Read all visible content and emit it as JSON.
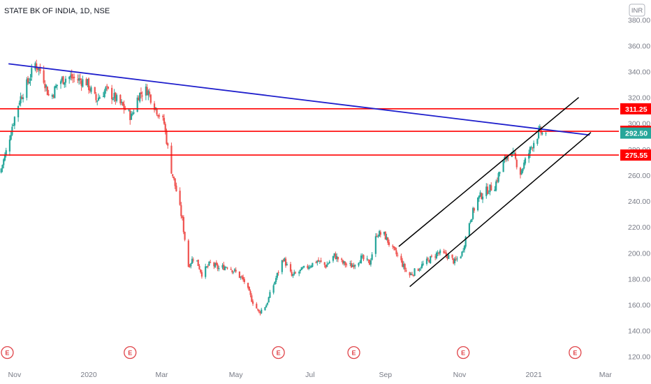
{
  "chart_data": {
    "type": "candlestick",
    "title": "STATE BK OF INDIA, 1D, NSE",
    "currency": "INR",
    "ylim": [
      115,
      392
    ],
    "y_ticks": [
      120,
      140,
      160,
      180,
      200,
      220,
      240,
      260,
      280,
      300,
      320,
      340,
      360,
      380
    ],
    "y_tick_labels": [
      "120.00",
      "140.00",
      "160.00",
      "180.00",
      "200.00",
      "220.00",
      "240.00",
      "260.00",
      "280.00",
      "300.00",
      "320.00",
      "340.00",
      "360.00",
      "380.00"
    ],
    "x_range": [
      "2019-10-20",
      "2021-03-12"
    ],
    "x_ticks": [
      {
        "label": "Nov",
        "date": "2019-11-01"
      },
      {
        "label": "2020",
        "date": "2020-01-01"
      },
      {
        "label": "Mar",
        "date": "2020-03-01"
      },
      {
        "label": "May",
        "date": "2020-05-01"
      },
      {
        "label": "Jul",
        "date": "2020-07-01"
      },
      {
        "label": "Sep",
        "date": "2020-09-01"
      },
      {
        "label": "Nov",
        "date": "2020-11-01"
      },
      {
        "label": "2021",
        "date": "2021-01-01"
      },
      {
        "label": "Mar",
        "date": "2021-03-01"
      }
    ],
    "price_path": [
      [
        "2019-10-20",
        262
      ],
      [
        "2019-10-25",
        278
      ],
      [
        "2019-10-30",
        298
      ],
      [
        "2019-11-05",
        318
      ],
      [
        "2019-11-12",
        332
      ],
      [
        "2019-11-18",
        346
      ],
      [
        "2019-11-24",
        338
      ],
      [
        "2019-11-30",
        318
      ],
      [
        "2019-12-07",
        332
      ],
      [
        "2019-12-15",
        336
      ],
      [
        "2019-12-22",
        334
      ],
      [
        "2019-12-30",
        332
      ],
      [
        "2020-01-07",
        318
      ],
      [
        "2020-01-15",
        326
      ],
      [
        "2020-01-22",
        320
      ],
      [
        "2020-01-30",
        312
      ],
      [
        "2020-02-05",
        305
      ],
      [
        "2020-02-11",
        322
      ],
      [
        "2020-02-18",
        326
      ],
      [
        "2020-02-25",
        312
      ],
      [
        "2020-03-03",
        300
      ],
      [
        "2020-03-08",
        268
      ],
      [
        "2020-03-13",
        248
      ],
      [
        "2020-03-18",
        225
      ],
      [
        "2020-03-23",
        190
      ],
      [
        "2020-03-28",
        198
      ],
      [
        "2020-04-03",
        184
      ],
      [
        "2020-04-10",
        192
      ],
      [
        "2020-04-17",
        188
      ],
      [
        "2020-04-24",
        190
      ],
      [
        "2020-05-01",
        185
      ],
      [
        "2020-05-08",
        178
      ],
      [
        "2020-05-14",
        164
      ],
      [
        "2020-05-20",
        154
      ],
      [
        "2020-05-26",
        160
      ],
      [
        "2020-06-02",
        178
      ],
      [
        "2020-06-09",
        196
      ],
      [
        "2020-06-16",
        182
      ],
      [
        "2020-06-23",
        186
      ],
      [
        "2020-06-30",
        190
      ],
      [
        "2020-07-07",
        194
      ],
      [
        "2020-07-14",
        190
      ],
      [
        "2020-07-21",
        198
      ],
      [
        "2020-07-28",
        192
      ],
      [
        "2020-08-04",
        190
      ],
      [
        "2020-08-12",
        196
      ],
      [
        "2020-08-19",
        192
      ],
      [
        "2020-08-25",
        215
      ],
      [
        "2020-08-31",
        214
      ],
      [
        "2020-09-06",
        204
      ],
      [
        "2020-09-13",
        195
      ],
      [
        "2020-09-20",
        182
      ],
      [
        "2020-09-28",
        188
      ],
      [
        "2020-10-06",
        194
      ],
      [
        "2020-10-14",
        200
      ],
      [
        "2020-10-22",
        198
      ],
      [
        "2020-10-28",
        193
      ],
      [
        "2020-11-03",
        200
      ],
      [
        "2020-11-09",
        224
      ],
      [
        "2020-11-16",
        242
      ],
      [
        "2020-11-23",
        248
      ],
      [
        "2020-11-30",
        252
      ],
      [
        "2020-12-06",
        268
      ],
      [
        "2020-12-11",
        277
      ],
      [
        "2020-12-16",
        274
      ],
      [
        "2020-12-21",
        262
      ],
      [
        "2020-12-26",
        273
      ],
      [
        "2021-01-01",
        286
      ],
      [
        "2021-01-06",
        294
      ],
      [
        "2021-01-09",
        291
      ],
      [
        "2021-01-11",
        292.5
      ]
    ],
    "last_price": 292.5,
    "horizontal_levels": [
      311.25,
      293.9,
      275.55
    ],
    "level_labels": [
      "311.25",
      "293.90",
      "275.55"
    ],
    "last_price_label": "292.50",
    "trendline": {
      "from": [
        "2019-10-27",
        346
      ],
      "to": [
        "2021-02-16",
        291
      ]
    },
    "channel_upper": {
      "from": [
        "2020-09-12",
        205
      ],
      "to": [
        "2021-02-07",
        320
      ]
    },
    "channel_lower": {
      "from": [
        "2020-09-21",
        174
      ],
      "to": [
        "2021-02-17",
        293
      ]
    },
    "earnings_markers": [
      {
        "label": "E",
        "date": "2019-10-26"
      },
      {
        "label": "E",
        "date": "2020-02-04"
      },
      {
        "label": "E",
        "date": "2020-06-05"
      },
      {
        "label": "E",
        "date": "2020-08-06"
      },
      {
        "label": "E",
        "date": "2020-11-04"
      },
      {
        "label": "E",
        "date": "2021-02-04"
      }
    ],
    "colors": {
      "up": "#26a69a",
      "down": "#ef5350",
      "level_line": "#ff0000",
      "trendline": "#1f1fcc",
      "channel": "#000000",
      "last_price_tag": "#26a69a",
      "level_tag": "#ff0000",
      "earnings": "#e0454a"
    }
  }
}
